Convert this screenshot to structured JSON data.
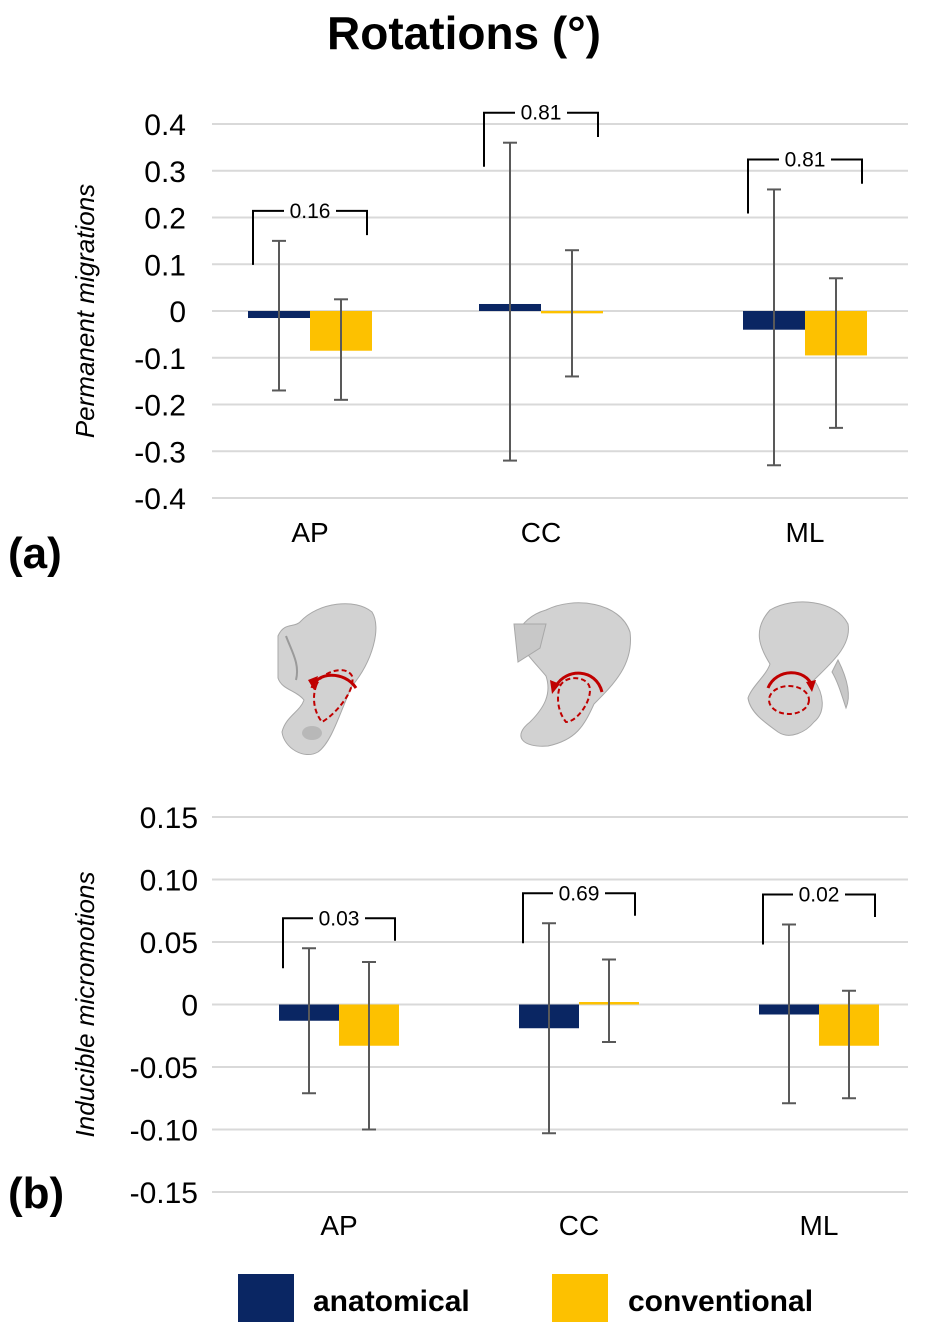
{
  "figure": {
    "title": "Rotations (°)",
    "colors": {
      "anatomical": "#0a2663",
      "conventional": "#fdc100",
      "error": "#595959",
      "grid": "#d9d9d9"
    },
    "legend": {
      "placement": "bottom",
      "items": [
        {
          "name": "anatomical",
          "color": "#0a2663"
        },
        {
          "name": "conventional",
          "color": "#fdc100"
        }
      ]
    },
    "icons": [
      "pelvis-ap-rotation-icon",
      "pelvis-cc-rotation-icon",
      "pelvis-ml-rotation-icon"
    ]
  },
  "chart_data": [
    {
      "type": "bar",
      "panel_label": "(a)",
      "ylabel": "Permanent migrations",
      "categories": [
        "AP",
        "CC",
        "ML"
      ],
      "ylim": [
        -0.4,
        0.4
      ],
      "yticks": [
        0.4,
        0.3,
        0.2,
        0.1,
        0,
        -0.1,
        -0.2,
        -0.3,
        -0.4
      ],
      "ytick_labels": [
        "0.4",
        "0.3",
        "0.2",
        "0.1",
        "0",
        "-0.1",
        "-0.2",
        "-0.3",
        "-0.4"
      ],
      "grid": true,
      "series": [
        {
          "name": "anatomical",
          "values": [
            -0.015,
            0.015,
            -0.04
          ],
          "err_low": [
            -0.17,
            -0.32,
            -0.33
          ],
          "err_high": [
            0.15,
            0.36,
            0.26
          ]
        },
        {
          "name": "conventional",
          "values": [
            -0.085,
            -0.005,
            -0.095
          ],
          "err_low": [
            -0.19,
            -0.14,
            -0.25
          ],
          "err_high": [
            0.025,
            0.13,
            0.07
          ]
        }
      ],
      "p_values": [
        "0.16",
        "0.81",
        "0.81"
      ]
    },
    {
      "type": "bar",
      "panel_label": "(b)",
      "ylabel": "Inducible micromotions",
      "categories": [
        "AP",
        "CC",
        "ML"
      ],
      "ylim": [
        -0.15,
        0.15
      ],
      "yticks": [
        0.15,
        0.1,
        0.05,
        0,
        -0.05,
        -0.1,
        -0.15
      ],
      "ytick_labels": [
        "0.15",
        "0.10",
        "0.05",
        "0",
        "-0.05",
        "-0.10",
        "-0.15"
      ],
      "grid": true,
      "series": [
        {
          "name": "anatomical",
          "values": [
            -0.013,
            -0.019,
            -0.008
          ],
          "err_low": [
            -0.071,
            -0.103,
            -0.079
          ],
          "err_high": [
            0.045,
            0.065,
            0.064
          ]
        },
        {
          "name": "conventional",
          "values": [
            -0.033,
            0.002,
            -0.033
          ],
          "err_low": [
            -0.1,
            -0.03,
            -0.075
          ],
          "err_high": [
            0.034,
            0.036,
            0.011
          ]
        }
      ],
      "p_values": [
        "0.03",
        "0.69",
        "0.02"
      ]
    }
  ]
}
